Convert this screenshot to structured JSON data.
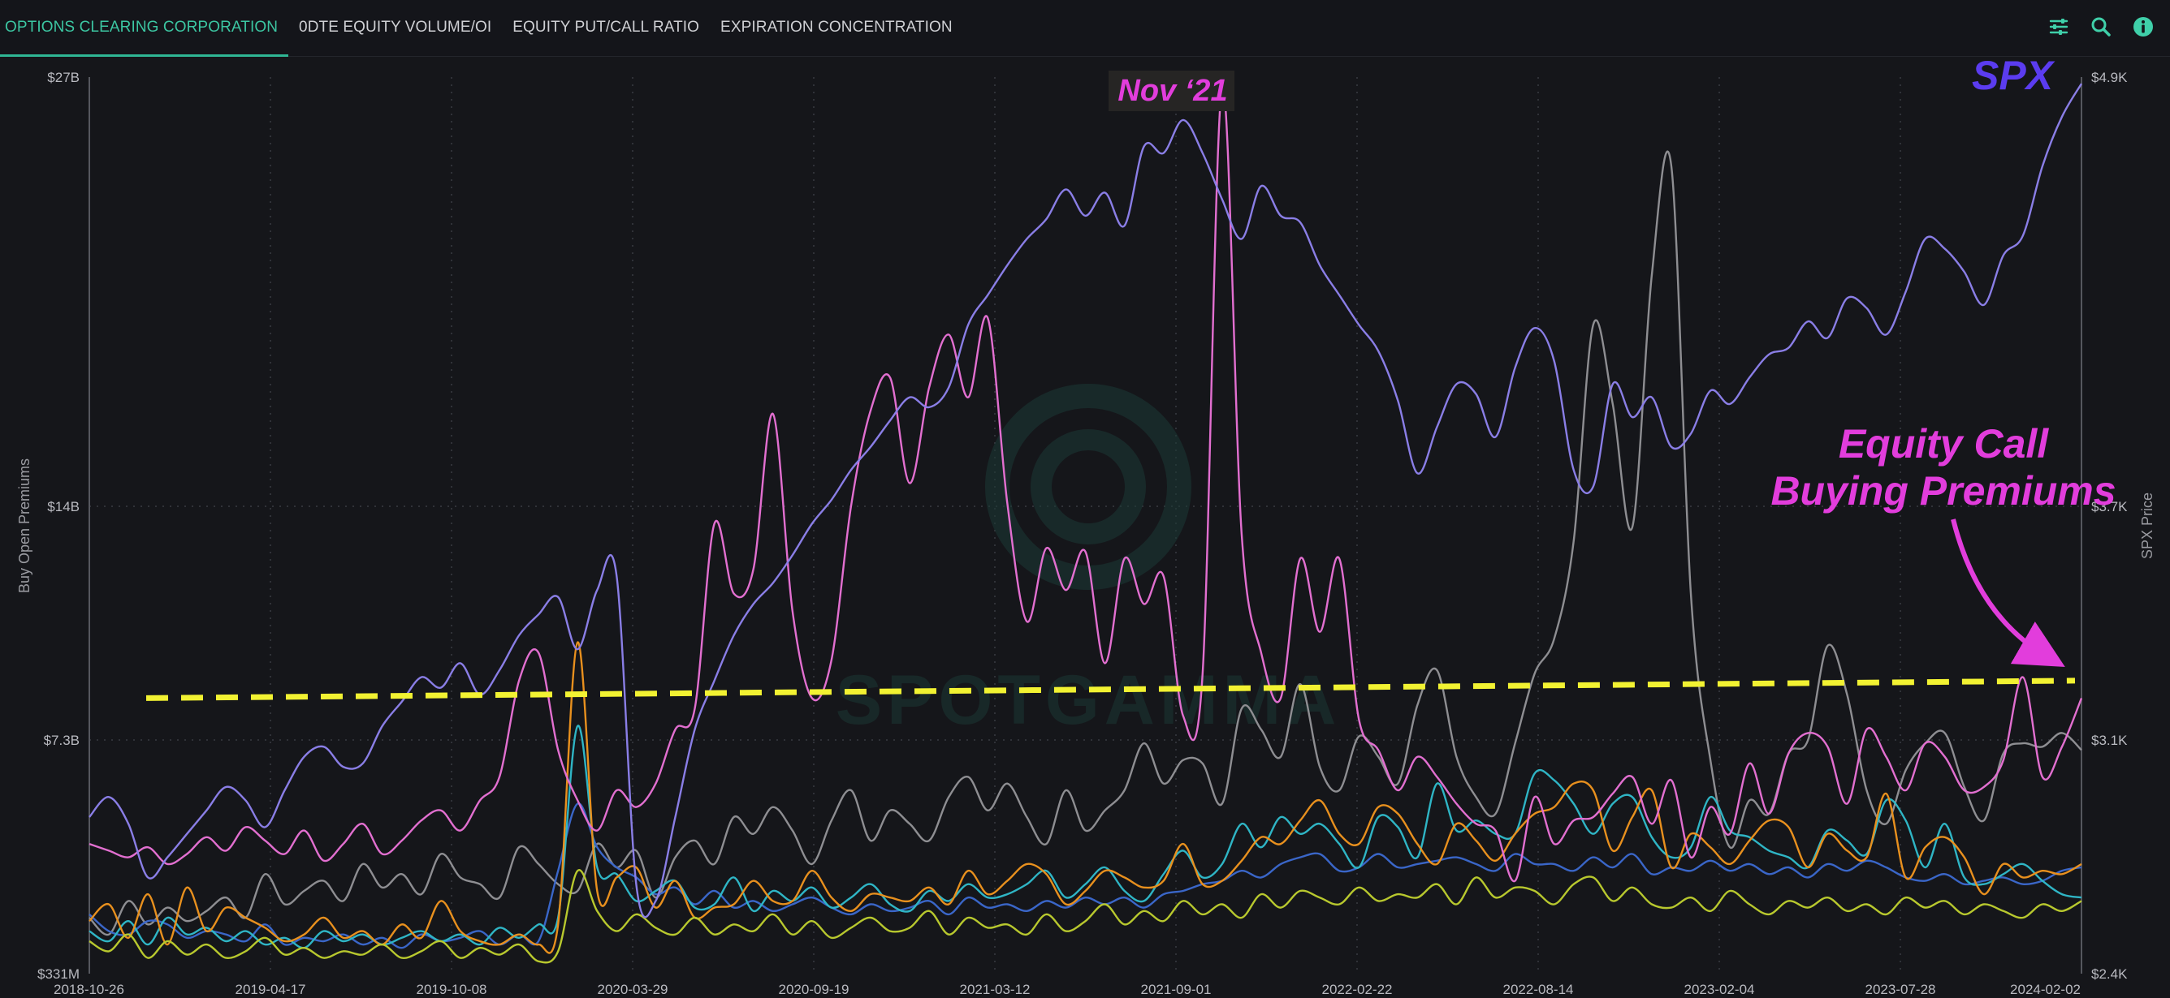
{
  "tabs": [
    {
      "label": "OPTIONS CLEARING CORPORATION",
      "active": true
    },
    {
      "label": "0DTE EQUITY VOLUME/OI",
      "active": false
    },
    {
      "label": "EQUITY PUT/CALL RATIO",
      "active": false
    },
    {
      "label": "EXPIRATION CONCENTRATION",
      "active": false
    }
  ],
  "toolbar": {
    "icons": [
      "filter-sliders-icon",
      "search-icon",
      "info-icon"
    ]
  },
  "colors": {
    "accent": "#2fb694",
    "spx": "#8a7ee6",
    "call_premiums": "#e26fd0",
    "threshold": "#f2f232",
    "annotation": "#e23ddc",
    "spx_label": "#5b3cf0"
  },
  "watermark": "SPOTGAMMA",
  "chart_data": {
    "type": "line",
    "title": "",
    "ylabel": "Buy Open Premiums",
    "y2label": "SPX Price",
    "x_ticks": [
      "2018-10-26",
      "2019-04-17",
      "2019-10-08",
      "2020-03-29",
      "2020-09-19",
      "2021-03-12",
      "2021-09-01",
      "2022-02-22",
      "2022-08-14",
      "2023-02-04",
      "2023-07-28",
      "2024-02-02"
    ],
    "y_ticks": [
      {
        "label": "$331M",
        "value": 0.331
      },
      {
        "label": "$7.3B",
        "value": 7.3
      },
      {
        "label": "$14B",
        "value": 14
      },
      {
        "label": "$27B",
        "value": 27
      }
    ],
    "y2_ticks": [
      {
        "label": "$2.4K",
        "value": 2400
      },
      {
        "label": "$3.1K",
        "value": 3100
      },
      {
        "label": "$3.7K",
        "value": 3700
      },
      {
        "label": "$4.9K",
        "value": 4900
      }
    ],
    "annotations": {
      "peak": "Nov ‘21",
      "spx": "SPX",
      "call_line1": "Equity Call",
      "call_line2": "Buying Premiums"
    },
    "threshold": {
      "value_start": 8.5,
      "value_end": 9.0
    },
    "series": [
      {
        "color": "#8a7ee6",
        "role": "spx",
        "values": [
          5.0,
          5.6,
          4.8,
          3.2,
          3.8,
          4.5,
          5.2,
          5.9,
          5.5,
          4.7,
          5.8,
          6.8,
          7.1,
          6.5,
          6.6,
          7.7,
          8.4,
          9.1,
          8.8,
          9.5,
          8.6,
          9.3,
          10.3,
          10.9,
          11.4,
          9.9,
          11.6,
          12.0,
          3.0,
          2.5,
          5.0,
          7.6,
          9.0,
          10.3,
          11.2,
          11.8,
          12.6,
          13.5,
          14.2,
          15.1,
          15.8,
          16.6,
          17.3,
          17.0,
          17.6,
          19.5,
          20.4,
          21.3,
          22.1,
          22.7,
          23.6,
          22.8,
          23.5,
          22.5,
          24.9,
          24.7,
          25.7,
          24.7,
          23.3,
          22.1,
          23.7,
          22.8,
          22.6,
          21.3,
          20.4,
          19.5,
          18.7,
          17.2,
          15.0,
          16.4,
          17.7,
          17.4,
          16.1,
          18.2,
          19.4,
          18.4,
          15.1,
          14.6,
          17.7,
          16.7,
          17.3,
          15.8,
          16.2,
          17.5,
          17.1,
          17.9,
          18.6,
          18.8,
          19.6,
          19.1,
          20.3,
          20.0,
          19.2,
          20.5,
          22.1,
          21.8,
          21.1,
          20.1,
          21.6,
          22.2,
          24.3,
          25.8,
          26.8
        ]
      },
      {
        "color": "#e26fd0",
        "role": "call_premiums",
        "values": [
          4.2,
          4.0,
          3.8,
          4.1,
          3.6,
          3.9,
          4.4,
          4.0,
          4.7,
          4.3,
          3.9,
          4.6,
          3.7,
          4.2,
          4.8,
          3.9,
          4.3,
          4.9,
          5.2,
          4.6,
          5.5,
          6.2,
          9.0,
          9.8,
          7.0,
          5.5,
          4.6,
          5.8,
          5.3,
          6.0,
          7.6,
          8.2,
          13.5,
          11.5,
          12.2,
          16.8,
          11.0,
          8.5,
          9.6,
          14.0,
          16.9,
          17.9,
          14.7,
          17.6,
          19.2,
          17.3,
          19.7,
          14.1,
          10.7,
          12.8,
          11.6,
          12.7,
          9.5,
          12.5,
          11.2,
          12.0,
          8.0,
          9.2,
          26.7,
          13.2,
          9.8,
          8.5,
          12.5,
          10.4,
          12.5,
          7.9,
          7.0,
          5.8,
          6.8,
          6.2,
          5.4,
          4.8,
          4.6,
          3.1,
          5.6,
          4.2,
          4.9,
          5.0,
          5.7,
          6.2,
          4.8,
          6.1,
          3.8,
          5.3,
          4.5,
          6.6,
          5.1,
          6.9,
          7.5,
          7.1,
          5.4,
          7.6,
          6.8,
          5.8,
          7.2,
          6.8,
          5.8,
          5.9,
          6.7,
          9.1,
          6.2,
          7.1,
          8.5
        ]
      },
      {
        "color": "#8e8e92",
        "role": "gray",
        "values": [
          2.0,
          1.5,
          2.5,
          1.8,
          2.3,
          1.9,
          2.2,
          2.6,
          2.0,
          3.3,
          2.4,
          2.8,
          3.1,
          2.5,
          3.6,
          2.9,
          3.3,
          2.7,
          3.9,
          3.2,
          3.0,
          2.6,
          4.1,
          3.6,
          3.0,
          2.8,
          4.2,
          3.5,
          4.0,
          2.6,
          3.8,
          4.3,
          3.6,
          5.0,
          4.5,
          5.3,
          4.6,
          3.6,
          4.9,
          5.8,
          4.3,
          5.2,
          4.8,
          4.3,
          5.6,
          6.2,
          5.2,
          6.0,
          5.0,
          4.2,
          5.8,
          4.6,
          5.2,
          5.8,
          7.2,
          6.0,
          6.7,
          6.6,
          5.4,
          8.2,
          7.6,
          6.8,
          8.9,
          6.5,
          5.8,
          7.4,
          6.8,
          6.0,
          8.3,
          9.3,
          6.8,
          5.6,
          5.1,
          7.2,
          9.2,
          10.2,
          13.0,
          19.5,
          17.1,
          13.4,
          21.0,
          24.3,
          11.5,
          6.7,
          4.1,
          5.5,
          5.1,
          6.9,
          7.3,
          10.0,
          8.6,
          5.8,
          4.8,
          6.4,
          7.2,
          7.5,
          5.9,
          4.9,
          6.9,
          7.2,
          7.1,
          7.5,
          7.0
        ]
      },
      {
        "color": "#e8901e",
        "role": "orange",
        "values": [
          1.9,
          2.4,
          1.4,
          2.7,
          1.2,
          2.9,
          1.6,
          2.3,
          2.0,
          1.7,
          1.3,
          1.5,
          2.0,
          1.4,
          1.6,
          1.2,
          1.8,
          1.4,
          2.5,
          1.6,
          1.3,
          1.2,
          1.5,
          1.2,
          1.8,
          10.1,
          2.8,
          3.2,
          3.5,
          2.3,
          3.1,
          2.0,
          2.3,
          2.4,
          3.1,
          2.5,
          2.5,
          3.4,
          2.6,
          2.2,
          2.7,
          2.6,
          2.5,
          2.9,
          2.4,
          3.4,
          2.7,
          3.1,
          3.6,
          3.3,
          2.4,
          2.8,
          3.4,
          3.2,
          2.9,
          3.1,
          4.2,
          3.0,
          3.1,
          3.7,
          4.4,
          4.2,
          4.9,
          5.5,
          4.5,
          4.2,
          5.3,
          5.1,
          4.2,
          3.6,
          4.8,
          4.3,
          3.7,
          4.5,
          5.1,
          5.3,
          6.0,
          5.8,
          4.0,
          5.0,
          5.8,
          3.5,
          4.5,
          4.1,
          3.6,
          4.3,
          4.9,
          4.7,
          3.5,
          4.5,
          4.0,
          3.8,
          5.7,
          3.2,
          4.1,
          4.4,
          3.8,
          2.7,
          3.6,
          3.2,
          3.4,
          3.3,
          3.6
        ]
      },
      {
        "color": "#2fb5c5",
        "role": "cyan",
        "values": [
          1.6,
          1.3,
          1.9,
          1.2,
          2.0,
          1.5,
          1.7,
          1.3,
          1.6,
          1.2,
          1.4,
          1.1,
          1.6,
          1.3,
          1.5,
          1.2,
          1.4,
          1.6,
          1.3,
          1.5,
          1.2,
          1.7,
          1.4,
          1.8,
          2.0,
          7.7,
          3.5,
          3.3,
          2.5,
          2.8,
          3.1,
          2.3,
          2.4,
          3.2,
          2.2,
          2.8,
          2.5,
          2.9,
          2.3,
          2.6,
          3.0,
          2.4,
          2.2,
          2.8,
          2.5,
          3.0,
          2.6,
          2.7,
          3.0,
          3.4,
          2.6,
          3.0,
          3.5,
          2.8,
          2.5,
          3.3,
          4.0,
          3.2,
          3.6,
          4.8,
          4.1,
          5.0,
          4.5,
          4.8,
          4.2,
          3.5,
          5.0,
          4.7,
          3.8,
          6.0,
          4.6,
          4.9,
          4.5,
          4.5,
          6.3,
          6.1,
          5.4,
          4.5,
          5.4,
          5.6,
          4.4,
          3.8,
          4.1,
          5.6,
          4.6,
          4.4,
          4.0,
          3.8,
          3.5,
          4.6,
          4.3,
          3.9,
          5.5,
          4.9,
          3.5,
          4.8,
          3.2,
          3.0,
          3.3,
          3.6,
          3.1,
          2.7,
          2.6
        ]
      },
      {
        "color": "#3a66c8",
        "role": "blue",
        "values": [
          2.1,
          1.6,
          1.5,
          1.9,
          1.8,
          1.4,
          1.6,
          1.5,
          1.3,
          1.8,
          1.2,
          1.4,
          1.3,
          1.5,
          1.2,
          1.4,
          1.1,
          1.5,
          1.3,
          1.4,
          1.6,
          1.2,
          1.5,
          1.3,
          3.4,
          5.4,
          4.1,
          3.5,
          3.2,
          2.7,
          2.9,
          2.4,
          2.8,
          2.3,
          2.5,
          2.2,
          2.4,
          2.6,
          2.3,
          2.1,
          2.4,
          2.2,
          2.3,
          2.5,
          2.1,
          2.6,
          2.3,
          2.4,
          2.2,
          2.5,
          2.3,
          2.6,
          2.4,
          2.6,
          2.3,
          2.7,
          2.8,
          3.0,
          3.1,
          3.4,
          3.2,
          3.6,
          3.8,
          3.9,
          3.4,
          3.5,
          3.9,
          3.5,
          3.6,
          3.7,
          3.8,
          3.6,
          3.4,
          3.9,
          3.6,
          3.6,
          3.4,
          3.8,
          3.5,
          3.9,
          3.3,
          3.5,
          3.4,
          3.7,
          3.4,
          3.6,
          3.3,
          3.5,
          3.2,
          3.6,
          3.4,
          3.7,
          3.5,
          3.2,
          3.1,
          3.3,
          3.0,
          3.1,
          3.2,
          3.0,
          3.1,
          3.4,
          3.5
        ]
      },
      {
        "color": "#b8c82e",
        "role": "yellow-green",
        "values": [
          1.3,
          1.0,
          1.5,
          0.8,
          1.3,
          0.9,
          1.2,
          0.8,
          1.0,
          1.4,
          0.9,
          1.1,
          0.8,
          1.0,
          0.9,
          1.2,
          0.8,
          1.0,
          1.3,
          0.8,
          1.1,
          0.9,
          1.2,
          0.7,
          1.0,
          3.4,
          2.2,
          1.6,
          2.1,
          1.7,
          1.5,
          2.0,
          1.5,
          1.8,
          1.6,
          2.1,
          1.5,
          1.9,
          1.4,
          1.7,
          2.0,
          1.6,
          1.7,
          2.2,
          1.5,
          2.0,
          1.7,
          1.8,
          1.5,
          2.1,
          1.6,
          1.9,
          2.4,
          1.8,
          2.2,
          1.9,
          2.5,
          2.1,
          2.4,
          2.0,
          2.7,
          2.3,
          2.8,
          2.6,
          2.4,
          2.9,
          2.5,
          2.7,
          2.6,
          3.0,
          2.4,
          3.2,
          2.6,
          2.9,
          2.8,
          2.4,
          3.0,
          3.2,
          2.5,
          2.9,
          2.4,
          2.3,
          2.6,
          2.2,
          2.8,
          2.4,
          2.1,
          2.5,
          2.3,
          2.6,
          2.2,
          2.4,
          2.1,
          2.6,
          2.3,
          2.5,
          2.1,
          2.4,
          2.2,
          2.0,
          2.4,
          2.2,
          2.5
        ]
      }
    ]
  }
}
